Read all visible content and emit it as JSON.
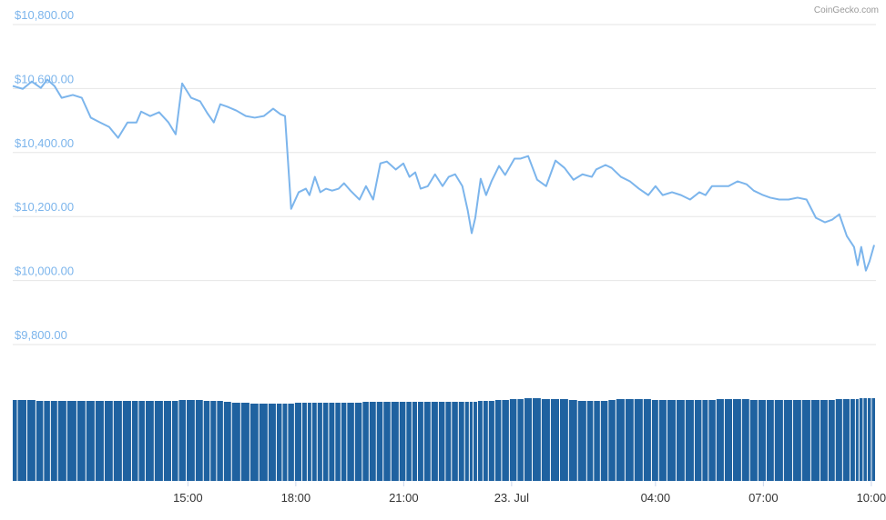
{
  "chart_data": {
    "type": "line",
    "credit": "CoinGecko.com",
    "x": [
      10.13,
      10.41,
      10.66,
      10.91,
      11.09,
      11.29,
      11.49,
      11.8,
      12.05,
      12.3,
      12.56,
      12.81,
      13.06,
      13.32,
      13.57,
      13.7,
      13.95,
      14.2,
      14.46,
      14.66,
      14.84,
      15.09,
      15.34,
      15.54,
      15.72,
      15.9,
      16.1,
      16.35,
      16.61,
      16.86,
      17.11,
      17.37,
      17.57,
      17.7,
      17.87,
      18.08,
      18.28,
      18.38,
      18.53,
      18.68,
      18.84,
      19.01,
      19.19,
      19.34,
      19.52,
      19.77,
      19.95,
      20.15,
      20.35,
      20.53,
      20.78,
      20.99,
      21.16,
      21.32,
      21.47,
      21.67,
      21.87,
      22.08,
      22.25,
      22.43,
      22.63,
      22.78,
      22.89,
      22.99,
      23.14,
      23.29,
      23.44,
      23.65,
      23.82,
      24.08,
      24.25,
      24.46,
      24.71,
      24.96,
      25.22,
      25.47,
      25.72,
      25.97,
      26.23,
      26.35,
      26.61,
      26.78,
      27.04,
      27.29,
      27.54,
      27.8,
      28.0,
      28.2,
      28.46,
      28.71,
      28.96,
      29.22,
      29.39,
      29.57,
      29.82,
      30.03,
      30.28,
      30.53,
      30.73,
      30.99,
      31.19,
      31.44,
      31.7,
      31.95,
      32.2,
      32.46,
      32.71,
      32.91,
      33.11,
      33.32,
      33.52,
      33.62,
      33.72,
      33.85,
      33.95,
      34.08
    ],
    "series": [
      {
        "type": "line",
        "color": "#7cb5ec",
        "values": [
          10608,
          10599,
          10622,
          10602,
          10628,
          10608,
          10571,
          10580,
          10571,
          10509,
          10494,
          10480,
          10446,
          10494,
          10494,
          10528,
          10514,
          10526,
          10494,
          10457,
          10616,
          10571,
          10560,
          10523,
          10494,
          10551,
          10543,
          10531,
          10514,
          10509,
          10514,
          10537,
          10520,
          10514,
          10224,
          10276,
          10287,
          10267,
          10324,
          10276,
          10287,
          10281,
          10287,
          10304,
          10281,
          10253,
          10295,
          10253,
          10366,
          10372,
          10347,
          10366,
          10324,
          10338,
          10287,
          10295,
          10332,
          10295,
          10324,
          10332,
          10295,
          10219,
          10148,
          10196,
          10318,
          10267,
          10310,
          10358,
          10330,
          10381,
          10381,
          10389,
          10315,
          10295,
          10375,
          10352,
          10315,
          10332,
          10324,
          10347,
          10361,
          10352,
          10324,
          10310,
          10287,
          10267,
          10295,
          10267,
          10276,
          10267,
          10253,
          10276,
          10267,
          10295,
          10295,
          10295,
          10310,
          10301,
          10281,
          10267,
          10259,
          10253,
          10253,
          10259,
          10253,
          10196,
          10182,
          10190,
          10207,
          10139,
          10105,
          10048,
          10105,
          10031,
          10060,
          10111
        ]
      },
      {
        "type": "bar",
        "axis": "y2",
        "color": "#1f62a0",
        "values": [
          89,
          89,
          89,
          88,
          88,
          88,
          88,
          88,
          88,
          88,
          88,
          88,
          88,
          88,
          88,
          88,
          88,
          88,
          88,
          88,
          89,
          89,
          89,
          88,
          88,
          88,
          87,
          86,
          86,
          85,
          85,
          85,
          85,
          85,
          85,
          86,
          86,
          86,
          86,
          86,
          86,
          86,
          86,
          86,
          86,
          86,
          87,
          87,
          87,
          87,
          87,
          87,
          87,
          87,
          87,
          87,
          87,
          87,
          87,
          87,
          87,
          87,
          87,
          87,
          88,
          88,
          88,
          89,
          89,
          90,
          90,
          91,
          91,
          90,
          90,
          90,
          89,
          88,
          88,
          88,
          88,
          89,
          90,
          90,
          90,
          90,
          89,
          89,
          89,
          89,
          89,
          89,
          89,
          89,
          90,
          90,
          90,
          90,
          89,
          89,
          89,
          89,
          89,
          89,
          89,
          89,
          89,
          89,
          90,
          90,
          90,
          90,
          91,
          91,
          91,
          91
        ]
      }
    ],
    "xlim": [
      10.13,
      34.13
    ],
    "xticks": [
      {
        "value": 15,
        "label": "15:00"
      },
      {
        "value": 18,
        "label": "18:00"
      },
      {
        "value": 21,
        "label": "21:00"
      },
      {
        "value": 24,
        "label": "23. Jul"
      },
      {
        "value": 28,
        "label": "04:00"
      },
      {
        "value": 31,
        "label": "07:00"
      },
      {
        "value": 34,
        "label": "10:00"
      }
    ],
    "ylim": [
      9800,
      10800
    ],
    "yticks": [
      {
        "value": 9800,
        "label": "$9,800.00"
      },
      {
        "value": 10000,
        "label": "$10,000.00"
      },
      {
        "value": 10200,
        "label": "$10,200.00"
      },
      {
        "value": 10400,
        "label": "$10,400.00"
      },
      {
        "value": 10600,
        "label": "$10,600.00"
      },
      {
        "value": 10800,
        "label": "$10,800.00"
      }
    ],
    "y2lim": [
      0,
      100
    ],
    "grid": true
  }
}
